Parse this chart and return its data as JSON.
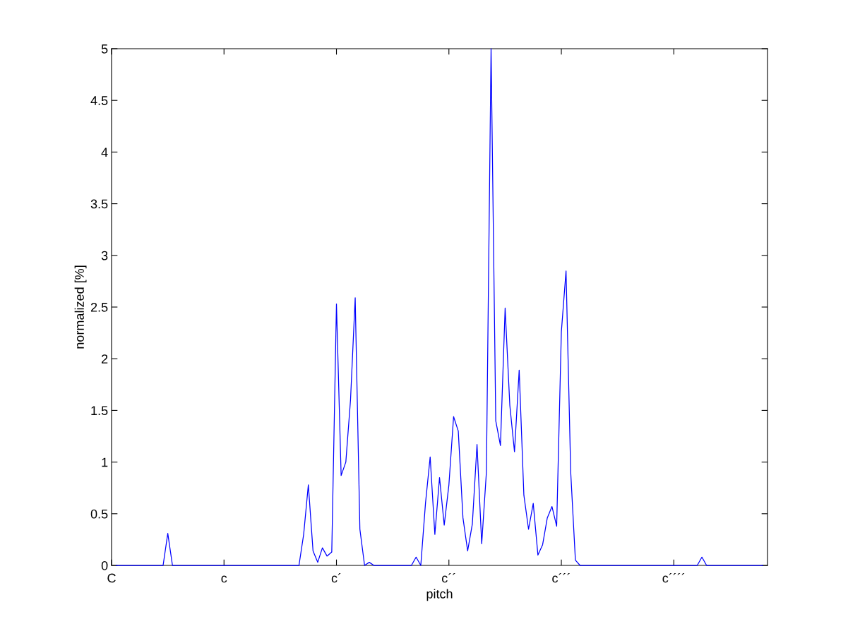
{
  "chart_data": {
    "type": "line",
    "xlabel": "pitch",
    "ylabel": "normalized [%]",
    "ylim": [
      0,
      5
    ],
    "yticks": [
      0,
      0.5,
      1,
      1.5,
      2,
      2.5,
      3,
      3.5,
      4,
      4.5,
      5
    ],
    "grid": false,
    "legend": false,
    "marker": "none",
    "line_style": "solid",
    "categories": [
      "C",
      null,
      null,
      null,
      null,
      null,
      null,
      null,
      null,
      null,
      null,
      null,
      null,
      null,
      null,
      null,
      null,
      null,
      null,
      null,
      null,
      null,
      null,
      null,
      "c",
      null,
      null,
      null,
      null,
      null,
      null,
      null,
      null,
      null,
      null,
      null,
      null,
      null,
      null,
      null,
      null,
      null,
      null,
      null,
      null,
      null,
      null,
      null,
      "c´",
      null,
      null,
      null,
      null,
      null,
      null,
      null,
      null,
      null,
      null,
      null,
      null,
      null,
      null,
      null,
      null,
      null,
      null,
      null,
      null,
      null,
      null,
      null,
      "c´´",
      null,
      null,
      null,
      null,
      null,
      null,
      null,
      null,
      null,
      null,
      null,
      null,
      null,
      null,
      null,
      null,
      null,
      null,
      null,
      null,
      null,
      null,
      null,
      "c´´´",
      null,
      null,
      null,
      null,
      null,
      null,
      null,
      null,
      null,
      null,
      null,
      null,
      null,
      null,
      null,
      null,
      null,
      null,
      null,
      null,
      null,
      null,
      null,
      "c´´´´",
      null,
      null,
      null,
      null,
      null,
      null,
      null,
      null,
      null,
      null,
      null,
      null,
      null,
      null,
      null,
      null,
      null,
      null,
      null,
      null
    ],
    "series": [
      {
        "color": "#0000ff",
        "values": [
          null,
          0,
          0,
          0,
          0,
          0,
          0,
          0,
          0,
          0,
          0,
          0,
          0.31,
          0,
          0,
          0,
          0,
          0,
          0,
          0,
          0,
          0,
          0,
          0,
          0,
          0,
          0,
          0,
          0,
          0,
          0,
          0,
          0,
          0,
          0,
          0,
          0,
          0,
          0,
          0,
          0,
          0.3,
          0.78,
          0.14,
          0.03,
          0.17,
          0.09,
          0.13,
          2.53,
          0.87,
          1.0,
          1.6,
          2.59,
          0.35,
          0,
          0.03,
          0,
          0,
          0,
          0,
          0,
          0,
          0,
          0,
          0,
          0.08,
          0,
          0.6,
          1.05,
          0.3,
          0.85,
          0.39,
          0.78,
          1.44,
          1.3,
          0.46,
          0.14,
          0.4,
          1.17,
          0.21,
          0.9,
          5.0,
          1.4,
          1.16,
          2.49,
          1.55,
          1.1,
          1.89,
          0.68,
          0.35,
          0.6,
          0.1,
          0.2,
          0.46,
          0.57,
          0.38,
          2.26,
          2.85,
          0.9,
          0.05,
          0,
          0,
          0,
          0,
          0,
          0,
          0,
          0,
          0,
          0,
          0,
          0,
          0,
          0,
          0,
          0,
          0,
          0,
          0,
          0,
          0,
          0,
          0,
          0,
          0,
          0,
          0.08,
          0,
          0,
          0,
          0,
          0,
          0,
          0,
          0,
          0,
          0,
          0,
          0,
          0,
          null
        ]
      }
    ]
  }
}
